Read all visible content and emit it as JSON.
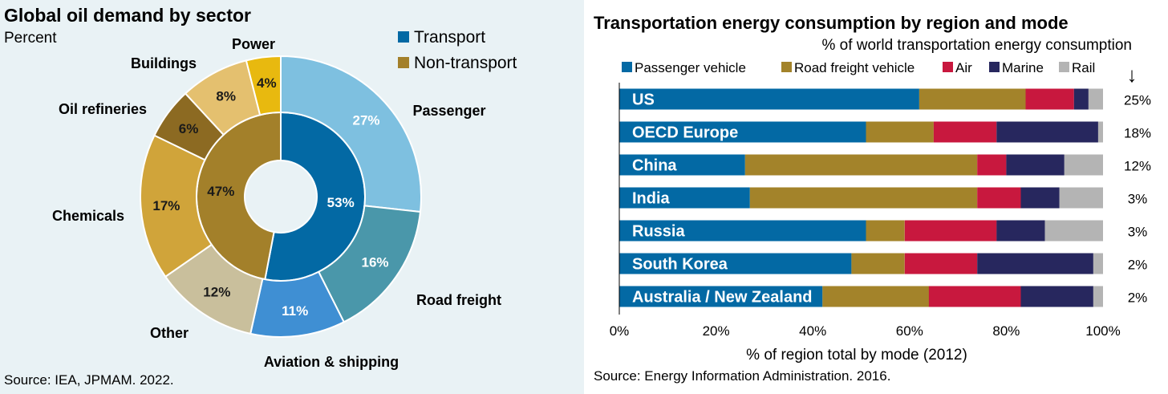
{
  "left": {
    "title": "Global oil demand by sector",
    "subtitle": "Percent",
    "source": "Source: IEA, JPMAM. 2022.",
    "legend": [
      {
        "label": "Transport",
        "color": "#0369a4"
      },
      {
        "label": "Non-transport",
        "color": "#a3802a"
      }
    ]
  },
  "right": {
    "title": "Transportation energy consumption by region and mode",
    "subtitle": "% of world transportation energy consumption",
    "xlabel": "% of region total by mode (2012)",
    "source": "Source: Energy Information Administration. 2016.",
    "arrow_glyph": "↓"
  },
  "chart_data": [
    {
      "type": "pie",
      "title": "Global oil demand by sector",
      "subtitle": "Percent",
      "inner": [
        {
          "label": "Transport",
          "value": 53,
          "value_label": "53%",
          "color": "#0369a4"
        },
        {
          "label": "Non-transport",
          "value": 47,
          "value_label": "47%",
          "color": "#a3802a"
        }
      ],
      "outer": [
        {
          "label": "Passenger",
          "value": 27,
          "value_label": "27%",
          "color": "#7ec0e0"
        },
        {
          "label": "Road freight",
          "value": 16,
          "value_label": "16%",
          "color": "#4a97aa"
        },
        {
          "label": "Aviation & shipping",
          "value": 11,
          "value_label": "11%",
          "color": "#3f8fd3"
        },
        {
          "label": "Other",
          "value": 12,
          "value_label": "12%",
          "color": "#c9bf9c"
        },
        {
          "label": "Chemicals",
          "value": 17,
          "value_label": "17%",
          "color": "#d0a43a"
        },
        {
          "label": "Oil refineries",
          "value": 6,
          "value_label": "6%",
          "color": "#8c6a22"
        },
        {
          "label": "Buildings",
          "value": 8,
          "value_label": "8%",
          "color": "#e4c06f"
        },
        {
          "label": "Power",
          "value": 4,
          "value_label": "4%",
          "color": "#e8b90f"
        }
      ]
    },
    {
      "type": "bar",
      "orientation": "horizontal",
      "stacked": true,
      "title": "Transportation energy consumption by region and mode",
      "subtitle": "% of world transportation energy consumption",
      "xlabel": "% of region total by mode (2012)",
      "xlim": [
        0,
        100
      ],
      "x_ticks": [
        "0%",
        "20%",
        "40%",
        "60%",
        "80%",
        "100%"
      ],
      "categories": [
        "US",
        "OECD Europe",
        "China",
        "India",
        "Russia",
        "South Korea",
        "Australia / New Zealand"
      ],
      "world_share": [
        "25%",
        "18%",
        "12%",
        "3%",
        "3%",
        "2%",
        "2%"
      ],
      "series": [
        {
          "name": "Passenger vehicle",
          "color": "#0369a4",
          "values": [
            62,
            51,
            26,
            27,
            51,
            48,
            42
          ]
        },
        {
          "name": "Road freight vehicle",
          "color": "#a3832a",
          "values": [
            22,
            14,
            48,
            47,
            8,
            11,
            22
          ]
        },
        {
          "name": "Air",
          "color": "#c8183e",
          "values": [
            10,
            13,
            6,
            9,
            19,
            15,
            19
          ]
        },
        {
          "name": "Marine",
          "color": "#27275e",
          "values": [
            3,
            21,
            12,
            8,
            10,
            24,
            15
          ]
        },
        {
          "name": "Rail",
          "color": "#b4b4b4",
          "values": [
            3,
            1,
            8,
            9,
            12,
            2,
            2
          ]
        }
      ]
    }
  ]
}
